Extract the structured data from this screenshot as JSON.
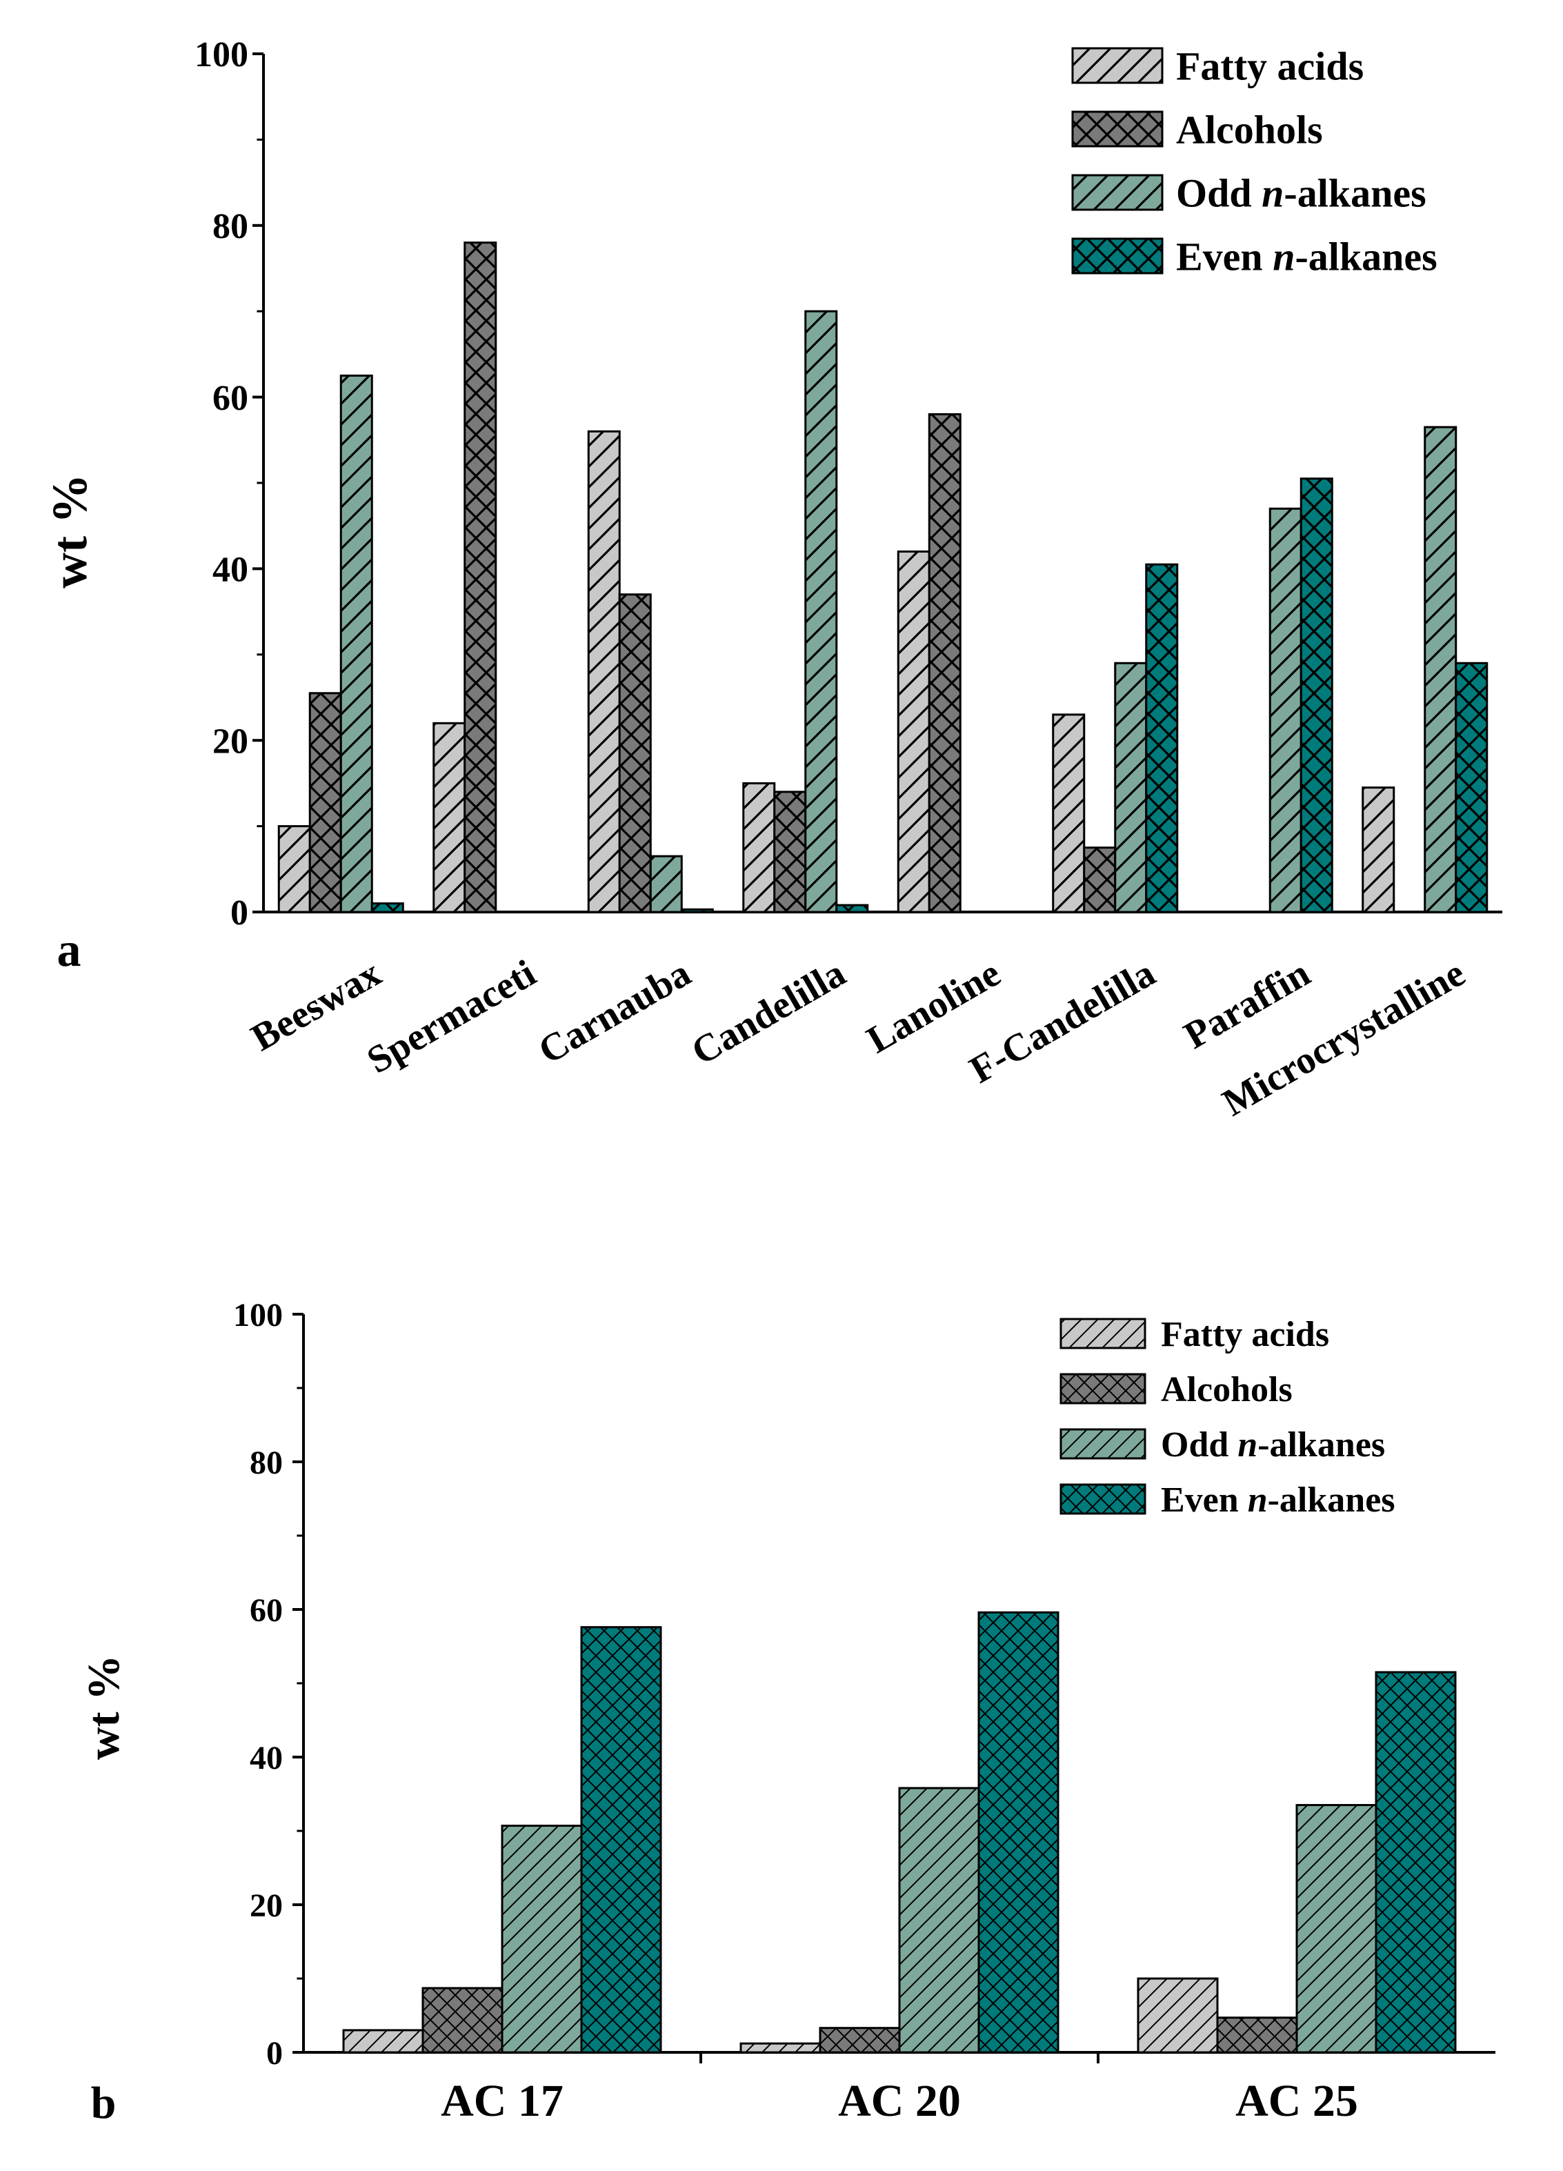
{
  "colors": {
    "fatty_acids": "#c8c8c8",
    "alcohols": "#7a7a7a",
    "odd_alkanes": "#7ea89c",
    "even_alkanes": "#007b7b"
  },
  "chart_data": [
    {
      "type": "bar",
      "panel_label": "a",
      "ylabel": "wt %",
      "xlabel": "",
      "ylim": [
        0,
        100
      ],
      "yticks": [
        0,
        20,
        40,
        60,
        80,
        100
      ],
      "legend_position": "top-right",
      "categories": [
        "Beeswax",
        "Spermaceti",
        "Carnauba",
        "Candelilla",
        "Lanoline",
        "F-Candelilla",
        "Paraffin",
        "Microcrystalline"
      ],
      "series": [
        {
          "name": "Fatty acids",
          "label_prefix": "Fatty acids",
          "label_italic": "",
          "label_suffix": "",
          "color_key": "fatty_acids",
          "pattern": "diag",
          "values": [
            10,
            22,
            56,
            15,
            42,
            23,
            0,
            14.5
          ]
        },
        {
          "name": "Alcohols",
          "label_prefix": "Alcohols",
          "label_italic": "",
          "label_suffix": "",
          "color_key": "alcohols",
          "pattern": "cross",
          "values": [
            25.5,
            78,
            37,
            14,
            58,
            7.5,
            0,
            0
          ]
        },
        {
          "name": "Odd n-alkanes",
          "label_prefix": "Odd ",
          "label_italic": "n",
          "label_suffix": "-alkanes",
          "color_key": "odd_alkanes",
          "pattern": "diag",
          "values": [
            62.5,
            0,
            6.5,
            70,
            0,
            29,
            47,
            56.5
          ]
        },
        {
          "name": "Even n-alkanes",
          "label_prefix": "Even ",
          "label_italic": "n",
          "label_suffix": "-alkanes",
          "color_key": "even_alkanes",
          "pattern": "cross",
          "values": [
            1,
            0,
            0.3,
            0.8,
            0,
            40.5,
            50.5,
            29
          ]
        }
      ]
    },
    {
      "type": "bar",
      "panel_label": "b",
      "ylabel": "wt %",
      "xlabel": "",
      "ylim": [
        0,
        100
      ],
      "yticks": [
        0,
        20,
        40,
        60,
        80,
        100
      ],
      "legend_position": "top-right",
      "categories": [
        "AC 17",
        "AC 20",
        "AC 25"
      ],
      "series": [
        {
          "name": "Fatty acids",
          "label_prefix": "Fatty acids",
          "label_italic": "",
          "label_suffix": "",
          "color_key": "fatty_acids",
          "pattern": "diag",
          "values": [
            3,
            1.2,
            10
          ]
        },
        {
          "name": "Alcohols",
          "label_prefix": "Alcohols",
          "label_italic": "",
          "label_suffix": "",
          "color_key": "alcohols",
          "pattern": "cross",
          "values": [
            8.7,
            3.3,
            4.7
          ]
        },
        {
          "name": "Odd n-alkanes",
          "label_prefix": "Odd ",
          "label_italic": "n",
          "label_suffix": "-alkanes",
          "color_key": "odd_alkanes",
          "pattern": "diag",
          "values": [
            30.7,
            35.8,
            33.5
          ]
        },
        {
          "name": "Even n-alkanes",
          "label_prefix": "Even ",
          "label_italic": "n",
          "label_suffix": "-alkanes",
          "color_key": "even_alkanes",
          "pattern": "cross",
          "values": [
            57.6,
            59.6,
            51.5
          ]
        }
      ]
    }
  ]
}
